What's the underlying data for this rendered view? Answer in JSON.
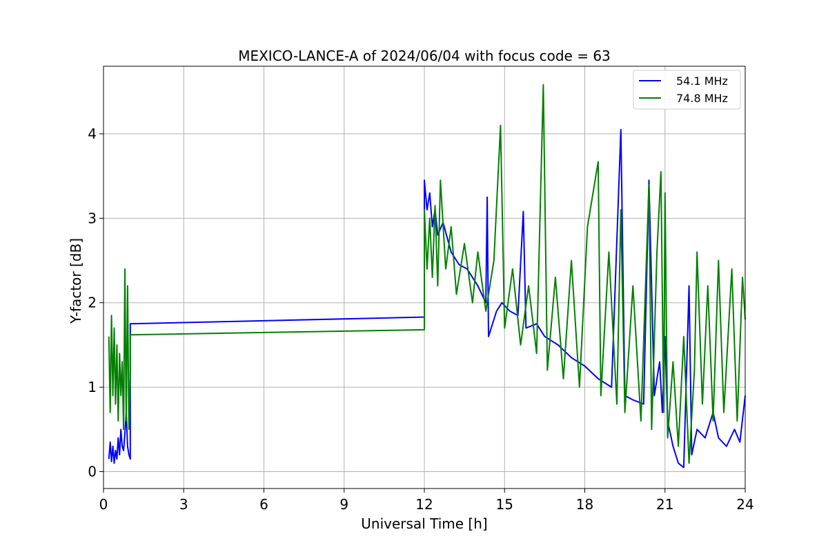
{
  "chart_data": {
    "type": "line",
    "title": "MEXICO-LANCE-A of 2024/06/04 with focus code = 63",
    "xlabel": "Universal Time [h]",
    "ylabel": "Y-factor [dB]",
    "xlim": [
      0,
      24
    ],
    "ylim": [
      -0.2,
      4.8
    ],
    "xticks": [
      0,
      3,
      6,
      9,
      12,
      15,
      18,
      21,
      24
    ],
    "yticks": [
      0,
      1,
      2,
      3,
      4
    ],
    "grid": true,
    "legend_position": "top-right",
    "series": [
      {
        "name": "54.1 MHz",
        "color": "#0000ff",
        "points": [
          [
            0.2,
            0.15
          ],
          [
            0.25,
            0.35
          ],
          [
            0.3,
            0.12
          ],
          [
            0.35,
            0.3
          ],
          [
            0.4,
            0.1
          ],
          [
            0.45,
            0.25
          ],
          [
            0.5,
            0.15
          ],
          [
            0.55,
            0.4
          ],
          [
            0.6,
            0.2
          ],
          [
            0.65,
            0.5
          ],
          [
            0.7,
            0.3
          ],
          [
            0.75,
            0.25
          ],
          [
            0.8,
            0.45
          ],
          [
            0.85,
            0.7
          ],
          [
            0.9,
            0.3
          ],
          [
            0.95,
            0.2
          ],
          [
            1.0,
            0.15
          ],
          [
            1.0,
            1.75
          ],
          [
            12.0,
            1.83
          ],
          [
            12.0,
            3.45
          ],
          [
            12.1,
            3.1
          ],
          [
            12.2,
            3.3
          ],
          [
            12.3,
            2.9
          ],
          [
            12.4,
            3.1
          ],
          [
            12.5,
            2.8
          ],
          [
            12.7,
            2.95
          ],
          [
            13.0,
            2.6
          ],
          [
            13.3,
            2.45
          ],
          [
            13.6,
            2.4
          ],
          [
            14.0,
            2.2
          ],
          [
            14.3,
            2.0
          ],
          [
            14.35,
            3.25
          ],
          [
            14.4,
            1.6
          ],
          [
            14.7,
            1.9
          ],
          [
            14.9,
            2.0
          ],
          [
            15.2,
            1.9
          ],
          [
            15.5,
            1.85
          ],
          [
            15.7,
            3.08
          ],
          [
            15.8,
            1.7
          ],
          [
            16.2,
            1.75
          ],
          [
            16.5,
            1.6
          ],
          [
            17.0,
            1.5
          ],
          [
            17.5,
            1.35
          ],
          [
            18.0,
            1.25
          ],
          [
            18.5,
            1.1
          ],
          [
            19.0,
            1.0
          ],
          [
            19.35,
            4.05
          ],
          [
            19.5,
            0.9
          ],
          [
            19.8,
            0.85
          ],
          [
            20.2,
            0.8
          ],
          [
            20.4,
            3.45
          ],
          [
            20.6,
            0.9
          ],
          [
            20.8,
            1.3
          ],
          [
            20.9,
            0.7
          ],
          [
            21.0,
            1.6
          ],
          [
            21.1,
            0.6
          ],
          [
            21.3,
            0.3
          ],
          [
            21.5,
            0.1
          ],
          [
            21.7,
            0.05
          ],
          [
            21.9,
            2.2
          ],
          [
            22.0,
            0.2
          ],
          [
            22.2,
            0.5
          ],
          [
            22.5,
            0.4
          ],
          [
            22.8,
            0.7
          ],
          [
            23.0,
            0.4
          ],
          [
            23.3,
            0.3
          ],
          [
            23.6,
            0.5
          ],
          [
            23.8,
            0.35
          ],
          [
            24.0,
            0.9
          ]
        ]
      },
      {
        "name": "74.8 MHz",
        "color": "#008000",
        "points": [
          [
            0.2,
            1.6
          ],
          [
            0.25,
            0.7
          ],
          [
            0.3,
            1.85
          ],
          [
            0.35,
            0.9
          ],
          [
            0.4,
            1.7
          ],
          [
            0.45,
            0.8
          ],
          [
            0.5,
            1.5
          ],
          [
            0.55,
            0.6
          ],
          [
            0.6,
            1.4
          ],
          [
            0.65,
            0.9
          ],
          [
            0.7,
            1.3
          ],
          [
            0.75,
            0.5
          ],
          [
            0.8,
            2.4
          ],
          [
            0.85,
            0.6
          ],
          [
            0.9,
            2.2
          ],
          [
            0.95,
            0.5
          ],
          [
            1.0,
            1.2
          ],
          [
            1.0,
            1.62
          ],
          [
            12.0,
            1.68
          ],
          [
            12.0,
            3.1
          ],
          [
            12.1,
            2.4
          ],
          [
            12.2,
            3.0
          ],
          [
            12.3,
            2.3
          ],
          [
            12.4,
            3.15
          ],
          [
            12.5,
            2.2
          ],
          [
            12.6,
            3.45
          ],
          [
            12.8,
            2.4
          ],
          [
            13.0,
            2.9
          ],
          [
            13.2,
            2.1
          ],
          [
            13.5,
            2.7
          ],
          [
            13.8,
            2.0
          ],
          [
            14.0,
            2.6
          ],
          [
            14.3,
            1.9
          ],
          [
            14.6,
            2.5
          ],
          [
            14.85,
            4.1
          ],
          [
            15.0,
            1.7
          ],
          [
            15.3,
            2.4
          ],
          [
            15.6,
            1.5
          ],
          [
            15.9,
            2.2
          ],
          [
            16.2,
            1.4
          ],
          [
            16.45,
            4.58
          ],
          [
            16.6,
            1.2
          ],
          [
            16.9,
            2.3
          ],
          [
            17.2,
            1.1
          ],
          [
            17.5,
            2.5
          ],
          [
            17.8,
            1.0
          ],
          [
            18.1,
            2.9
          ],
          [
            18.5,
            3.67
          ],
          [
            18.6,
            0.9
          ],
          [
            18.9,
            2.6
          ],
          [
            19.2,
            0.8
          ],
          [
            19.35,
            3.1
          ],
          [
            19.5,
            0.7
          ],
          [
            19.8,
            2.2
          ],
          [
            20.1,
            0.6
          ],
          [
            20.4,
            3.4
          ],
          [
            20.5,
            0.5
          ],
          [
            20.7,
            2.6
          ],
          [
            20.85,
            3.55
          ],
          [
            20.95,
            0.7
          ],
          [
            21.0,
            3.3
          ],
          [
            21.1,
            0.4
          ],
          [
            21.3,
            1.3
          ],
          [
            21.5,
            0.3
          ],
          [
            21.7,
            1.6
          ],
          [
            21.9,
            0.1
          ],
          [
            22.1,
            1.2
          ],
          [
            22.2,
            2.6
          ],
          [
            22.4,
            0.8
          ],
          [
            22.6,
            2.2
          ],
          [
            22.8,
            0.6
          ],
          [
            23.0,
            2.5
          ],
          [
            23.2,
            0.7
          ],
          [
            23.5,
            2.4
          ],
          [
            23.7,
            0.6
          ],
          [
            23.9,
            2.3
          ],
          [
            24.0,
            1.8
          ]
        ]
      }
    ]
  }
}
